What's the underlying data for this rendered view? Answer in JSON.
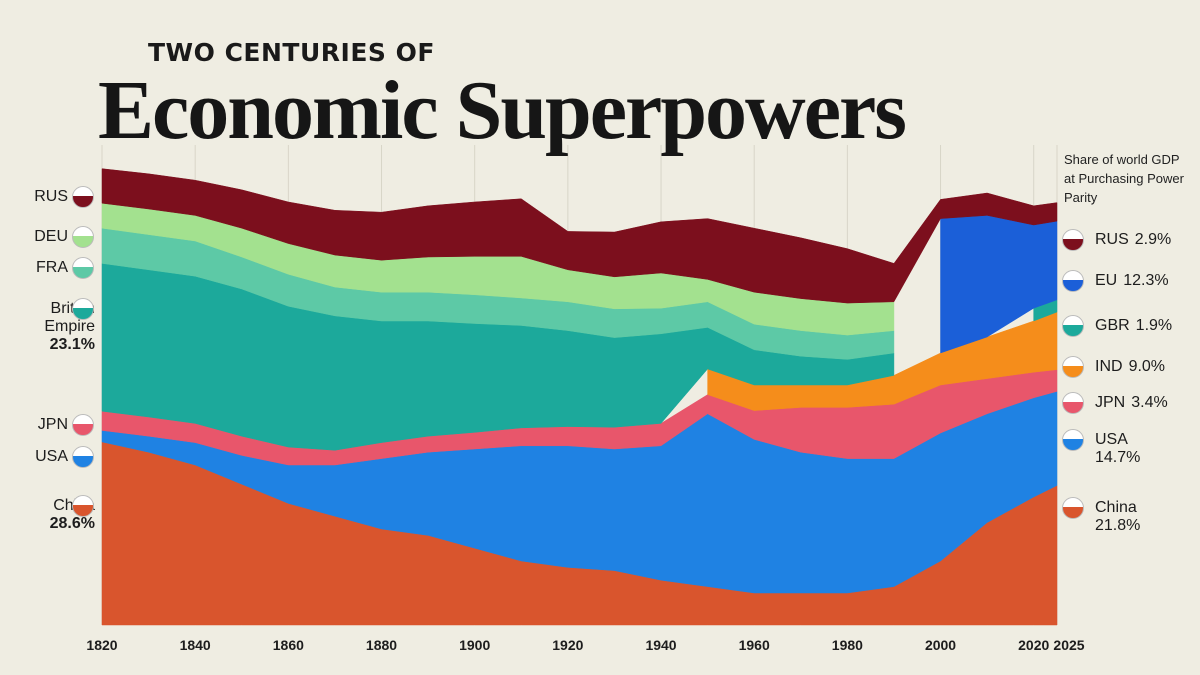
{
  "chart_data": {
    "type": "stacked-area",
    "supertitle": "TWO CENTURIES OF",
    "title": "Economic Superpowers",
    "subtitle": "Share of world GDP at Purchasing Power Parity",
    "x": [
      1820,
      1830,
      1840,
      1850,
      1860,
      1870,
      1880,
      1890,
      1900,
      1910,
      1920,
      1930,
      1940,
      1950,
      1960,
      1970,
      1980,
      1990,
      2000,
      2010,
      2020,
      2025
    ],
    "xlim": [
      1820,
      2025
    ],
    "xticks": [
      1820,
      1840,
      1860,
      1880,
      1900,
      1920,
      1940,
      1960,
      1980,
      2000,
      2020,
      2025
    ],
    "ylim": [
      0,
      75
    ],
    "grid": true,
    "series": [
      {
        "name": "China",
        "color": "#d9552d",
        "start_value_label": "28.6%",
        "end_value_label": "21.8%",
        "values": [
          28.6,
          27,
          25,
          22,
          19,
          17,
          15,
          14,
          12,
          10,
          9,
          8.5,
          7,
          6,
          5,
          5,
          5,
          6,
          10,
          16,
          20,
          21.8
        ]
      },
      {
        "name": "USA",
        "color": "#1f82e3",
        "end_value_label": "14.7%",
        "values": [
          1.8,
          2.5,
          3.5,
          4.5,
          6,
          8,
          11,
          13,
          15.5,
          18,
          19,
          19,
          21,
          27,
          24,
          22,
          21,
          20,
          20,
          17,
          15.5,
          14.7
        ]
      },
      {
        "name": "JPN",
        "color": "#e8566b",
        "end_value_label": "3.4%",
        "values": [
          3,
          3,
          3,
          3,
          2.8,
          2.3,
          2.5,
          2.5,
          2.6,
          2.8,
          3,
          3.4,
          3.5,
          3,
          4.5,
          7,
          8,
          8.5,
          7.5,
          5.5,
          4,
          3.4
        ]
      },
      {
        "name": "IND",
        "color": "#f58d1b",
        "end_value_label": "9.0%",
        "values": [
          null,
          null,
          null,
          null,
          null,
          null,
          null,
          null,
          null,
          null,
          null,
          null,
          null,
          4,
          4,
          3.5,
          3.5,
          4.5,
          5,
          6.5,
          8,
          9.0
        ]
      },
      {
        "name": "GBR",
        "start_label": "British Empire",
        "color": "#1ca99b",
        "start_value_label": "23.1%",
        "end_value_label": "1.9%",
        "values": [
          23.1,
          23,
          23,
          23,
          22,
          21,
          19,
          18,
          17,
          16,
          15,
          14,
          14,
          6.5,
          5.5,
          4.5,
          4,
          3.5,
          null,
          null,
          2,
          1.9
        ]
      },
      {
        "name": "FRA",
        "color": "#5dc9a6",
        "values": [
          5.5,
          5.5,
          5.5,
          5,
          5,
          4.5,
          4.5,
          4.5,
          4.5,
          4.3,
          4.5,
          4.5,
          4,
          4,
          4,
          4,
          3.8,
          3.5,
          null,
          null,
          null,
          null
        ]
      },
      {
        "name": "DEU",
        "color": "#a3e18f",
        "values": [
          3.9,
          4,
          4,
          4.5,
          4.8,
          5,
          5,
          5.5,
          6,
          6.5,
          5,
          5,
          5.5,
          3.5,
          5,
          5,
          5,
          4.5,
          null,
          null,
          null,
          null
        ]
      },
      {
        "name": "EU",
        "color": "#1b5fd8",
        "end_value_label": "12.3%",
        "values": [
          null,
          null,
          null,
          null,
          null,
          null,
          null,
          null,
          null,
          null,
          null,
          null,
          null,
          null,
          null,
          null,
          null,
          null,
          21,
          19,
          13,
          12.3
        ]
      },
      {
        "name": "RUS",
        "color": "#7c0f1d",
        "end_value_label": "2.9%",
        "values": [
          5.4,
          5.5,
          5.5,
          6,
          6.5,
          7,
          7.5,
          8,
          8.5,
          9,
          6,
          7,
          8,
          9.5,
          10,
          9.5,
          8.5,
          6,
          3,
          3.5,
          3,
          2.9
        ]
      }
    ]
  }
}
